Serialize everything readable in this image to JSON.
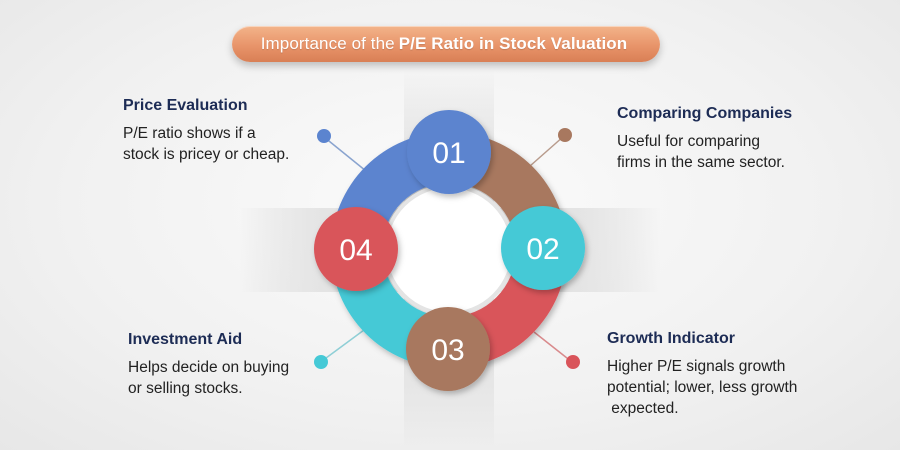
{
  "title": {
    "prefix": "Importance of the",
    "bold": "P/E Ratio in Stock Valuation"
  },
  "steps": [
    {
      "number": "01",
      "heading": "Price Evaluation",
      "text_lines": [
        "P/E ratio shows if a",
        "stock is pricey or cheap."
      ],
      "color": "#5b84cf"
    },
    {
      "number": "02",
      "heading": "Comparing Companies",
      "text_lines": [
        "Useful for comparing",
        "firms in the same sector."
      ],
      "color": "#45c9d6"
    },
    {
      "number": "03",
      "heading": "Investment Aid",
      "text_lines": [
        "Helps decide on buying",
        "or selling stocks."
      ],
      "color": "#a8785f"
    },
    {
      "number": "04",
      "heading": "Growth Indicator",
      "text_lines": [
        "Higher P/E signals growth",
        "potential; lower, less growth",
        " expected."
      ],
      "color": "#d9545a"
    }
  ],
  "ring_colors": {
    "top_left": "#5b84cf",
    "top_right": "#a8785f",
    "bottom_right": "#d9545a",
    "bottom_left": "#45c9d6"
  },
  "dot_colors": {
    "top_left": "#5b84cf",
    "top_right": "#a8785f",
    "bottom_left": "#45c9d6",
    "bottom_right": "#d9545a"
  }
}
